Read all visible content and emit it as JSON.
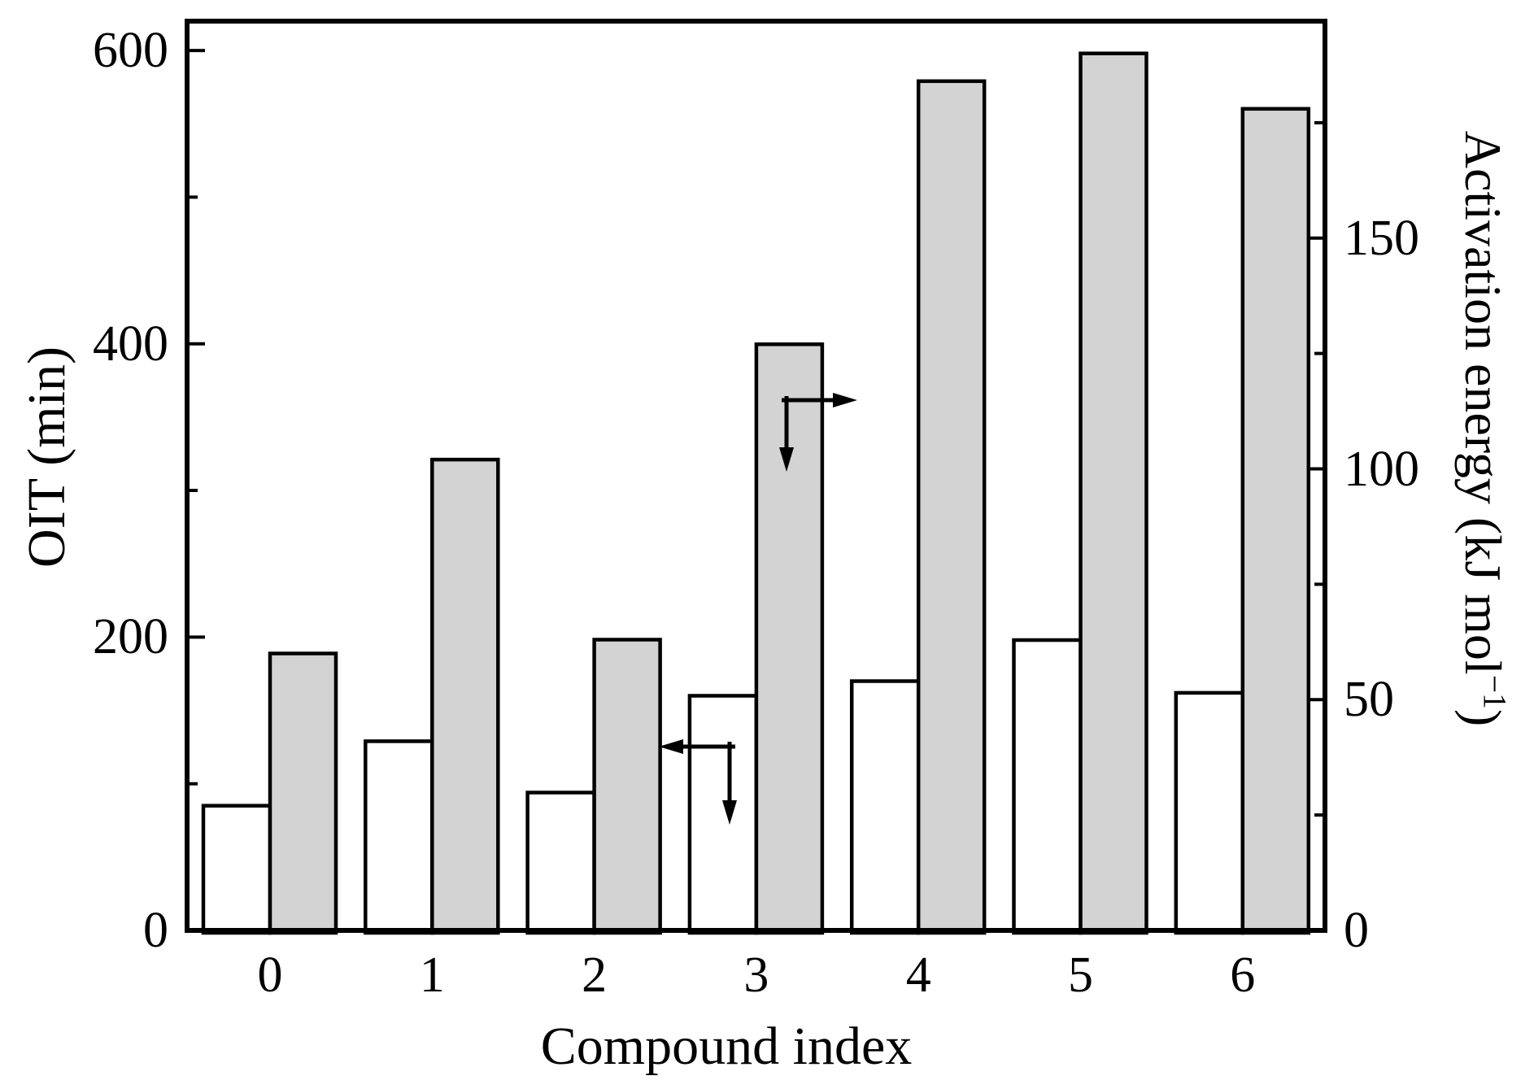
{
  "figure": {
    "background": "#ffffff",
    "line_color": "#000000"
  },
  "chart_data": {
    "type": "bar",
    "title": "",
    "xlabel": "Compound index",
    "ylabel_left": "OIT (min)",
    "ylabel_right": "Activation energy (kJ mol−1)",
    "ylabel_right_parts": {
      "prefix": "Activation energy (kJ mol",
      "sup": "−1",
      "suffix": ")"
    },
    "categories": [
      "0",
      "1",
      "2",
      "3",
      "4",
      "5",
      "6"
    ],
    "series": [
      {
        "name": "OIT",
        "axis": "left",
        "style": "white",
        "fill": "#ffffff",
        "values": [
          85,
          129,
          94,
          160,
          170,
          198,
          162
        ]
      },
      {
        "name": "Activation energy",
        "axis": "right",
        "style": "gray",
        "fill": "#d3d3d3",
        "values": [
          60,
          102,
          63,
          127,
          184,
          190,
          178
        ]
      }
    ],
    "left_axis": {
      "label": "OIT (min)",
      "range": [
        0,
        620
      ],
      "major_ticks": [
        0,
        200,
        400,
        600
      ],
      "minor_ticks": [
        100,
        300,
        500
      ],
      "tick_labels": [
        "0",
        "200",
        "400",
        "600"
      ]
    },
    "right_axis": {
      "label": "Activation energy (kJ mol−1)",
      "range": [
        0,
        197
      ],
      "major_ticks": [
        0,
        50,
        100,
        150
      ],
      "minor_ticks": [
        25,
        75,
        125,
        175
      ],
      "tick_labels": [
        "0",
        "50",
        "100",
        "150"
      ]
    },
    "legend": "none",
    "grid": false,
    "annotations": [
      {
        "name": "oit-axis-arrow",
        "meaning": "white bars read on left OIT axis",
        "heads": [
          "left",
          "down"
        ]
      },
      {
        "name": "ea-axis-arrow",
        "meaning": "gray bars read on right activation-energy axis",
        "heads": [
          "right",
          "down"
        ]
      }
    ],
    "colors": {
      "white_bar": "#ffffff",
      "gray_bar": "#d3d3d3",
      "outline": "#000000"
    }
  }
}
